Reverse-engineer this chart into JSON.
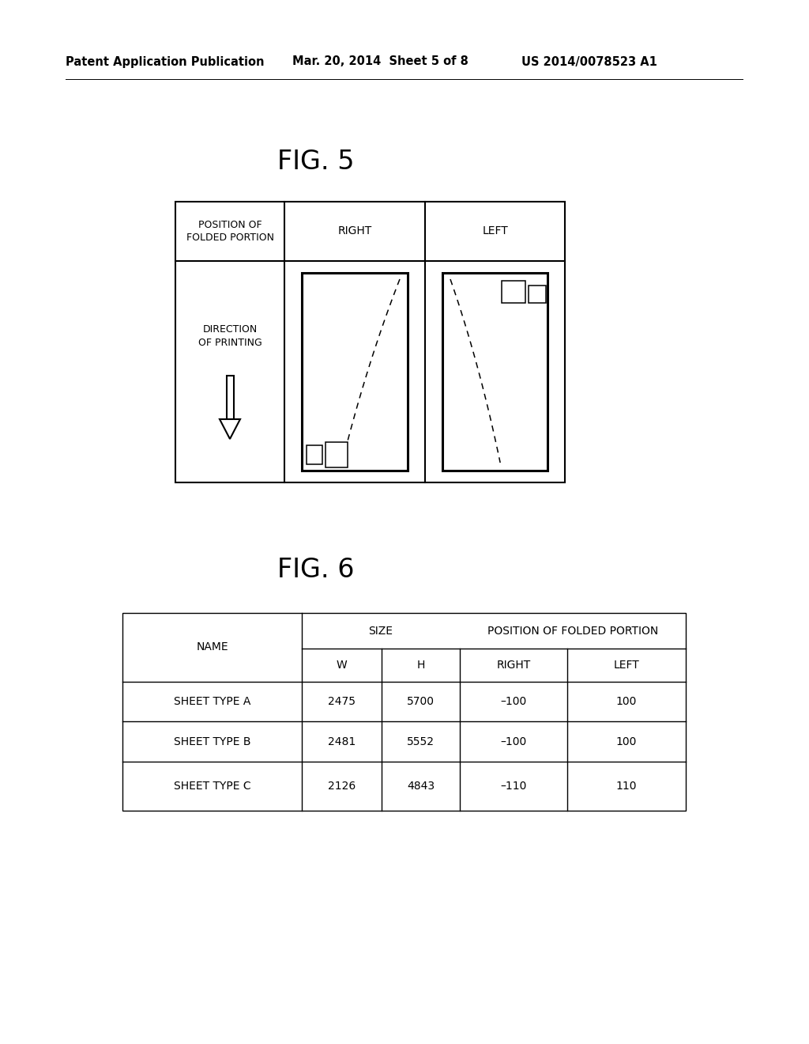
{
  "background_color": "#ffffff",
  "header_left": "Patent Application Publication",
  "header_center": "Mar. 20, 2014  Sheet 5 of 8",
  "header_right": "US 2014/0078523 A1",
  "fig5_title": "FIG. 5",
  "fig6_title": "FIG. 6",
  "table6_rows": [
    [
      "SHEET TYPE A",
      "2475",
      "5700",
      "–100",
      "100"
    ],
    [
      "SHEET TYPE B",
      "2481",
      "5552",
      "–100",
      "100"
    ],
    [
      "SHEET TYPE C",
      "2126",
      "4843",
      "–110",
      "110"
    ]
  ]
}
